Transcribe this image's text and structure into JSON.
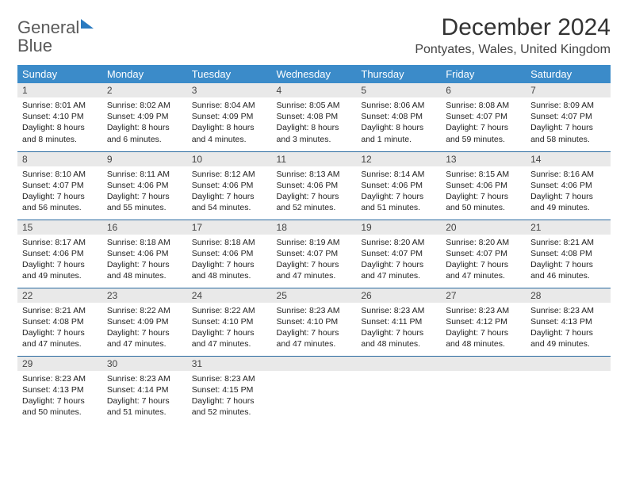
{
  "brand": {
    "word1": "General",
    "word2": "Blue"
  },
  "title": "December 2024",
  "location": "Pontyates, Wales, United Kingdom",
  "colors": {
    "header_bg": "#3b8bc9",
    "header_text": "#ffffff",
    "daynum_bg": "#e9e9e9",
    "row_border": "#2a6aa0",
    "logo_blue": "#2a7ac0",
    "logo_gray": "#5a5a5a",
    "body_text": "#222222"
  },
  "typography": {
    "title_fontsize": 30,
    "location_fontsize": 16,
    "header_fontsize": 13,
    "daynum_fontsize": 12,
    "cell_fontsize": 10.5
  },
  "weekdays": [
    "Sunday",
    "Monday",
    "Tuesday",
    "Wednesday",
    "Thursday",
    "Friday",
    "Saturday"
  ],
  "days": [
    {
      "n": "1",
      "sr": "8:01 AM",
      "ss": "4:10 PM",
      "dl": "8 hours and 8 minutes."
    },
    {
      "n": "2",
      "sr": "8:02 AM",
      "ss": "4:09 PM",
      "dl": "8 hours and 6 minutes."
    },
    {
      "n": "3",
      "sr": "8:04 AM",
      "ss": "4:09 PM",
      "dl": "8 hours and 4 minutes."
    },
    {
      "n": "4",
      "sr": "8:05 AM",
      "ss": "4:08 PM",
      "dl": "8 hours and 3 minutes."
    },
    {
      "n": "5",
      "sr": "8:06 AM",
      "ss": "4:08 PM",
      "dl": "8 hours and 1 minute."
    },
    {
      "n": "6",
      "sr": "8:08 AM",
      "ss": "4:07 PM",
      "dl": "7 hours and 59 minutes."
    },
    {
      "n": "7",
      "sr": "8:09 AM",
      "ss": "4:07 PM",
      "dl": "7 hours and 58 minutes."
    },
    {
      "n": "8",
      "sr": "8:10 AM",
      "ss": "4:07 PM",
      "dl": "7 hours and 56 minutes."
    },
    {
      "n": "9",
      "sr": "8:11 AM",
      "ss": "4:06 PM",
      "dl": "7 hours and 55 minutes."
    },
    {
      "n": "10",
      "sr": "8:12 AM",
      "ss": "4:06 PM",
      "dl": "7 hours and 54 minutes."
    },
    {
      "n": "11",
      "sr": "8:13 AM",
      "ss": "4:06 PM",
      "dl": "7 hours and 52 minutes."
    },
    {
      "n": "12",
      "sr": "8:14 AM",
      "ss": "4:06 PM",
      "dl": "7 hours and 51 minutes."
    },
    {
      "n": "13",
      "sr": "8:15 AM",
      "ss": "4:06 PM",
      "dl": "7 hours and 50 minutes."
    },
    {
      "n": "14",
      "sr": "8:16 AM",
      "ss": "4:06 PM",
      "dl": "7 hours and 49 minutes."
    },
    {
      "n": "15",
      "sr": "8:17 AM",
      "ss": "4:06 PM",
      "dl": "7 hours and 49 minutes."
    },
    {
      "n": "16",
      "sr": "8:18 AM",
      "ss": "4:06 PM",
      "dl": "7 hours and 48 minutes."
    },
    {
      "n": "17",
      "sr": "8:18 AM",
      "ss": "4:06 PM",
      "dl": "7 hours and 48 minutes."
    },
    {
      "n": "18",
      "sr": "8:19 AM",
      "ss": "4:07 PM",
      "dl": "7 hours and 47 minutes."
    },
    {
      "n": "19",
      "sr": "8:20 AM",
      "ss": "4:07 PM",
      "dl": "7 hours and 47 minutes."
    },
    {
      "n": "20",
      "sr": "8:20 AM",
      "ss": "4:07 PM",
      "dl": "7 hours and 47 minutes."
    },
    {
      "n": "21",
      "sr": "8:21 AM",
      "ss": "4:08 PM",
      "dl": "7 hours and 46 minutes."
    },
    {
      "n": "22",
      "sr": "8:21 AM",
      "ss": "4:08 PM",
      "dl": "7 hours and 47 minutes."
    },
    {
      "n": "23",
      "sr": "8:22 AM",
      "ss": "4:09 PM",
      "dl": "7 hours and 47 minutes."
    },
    {
      "n": "24",
      "sr": "8:22 AM",
      "ss": "4:10 PM",
      "dl": "7 hours and 47 minutes."
    },
    {
      "n": "25",
      "sr": "8:23 AM",
      "ss": "4:10 PM",
      "dl": "7 hours and 47 minutes."
    },
    {
      "n": "26",
      "sr": "8:23 AM",
      "ss": "4:11 PM",
      "dl": "7 hours and 48 minutes."
    },
    {
      "n": "27",
      "sr": "8:23 AM",
      "ss": "4:12 PM",
      "dl": "7 hours and 48 minutes."
    },
    {
      "n": "28",
      "sr": "8:23 AM",
      "ss": "4:13 PM",
      "dl": "7 hours and 49 minutes."
    },
    {
      "n": "29",
      "sr": "8:23 AM",
      "ss": "4:13 PM",
      "dl": "7 hours and 50 minutes."
    },
    {
      "n": "30",
      "sr": "8:23 AM",
      "ss": "4:14 PM",
      "dl": "7 hours and 51 minutes."
    },
    {
      "n": "31",
      "sr": "8:23 AM",
      "ss": "4:15 PM",
      "dl": "7 hours and 52 minutes."
    }
  ],
  "labels": {
    "sunrise": "Sunrise:",
    "sunset": "Sunset:",
    "daylight": "Daylight:"
  },
  "layout": {
    "columns": 7,
    "rows": 5,
    "trailing_empty": 4
  }
}
